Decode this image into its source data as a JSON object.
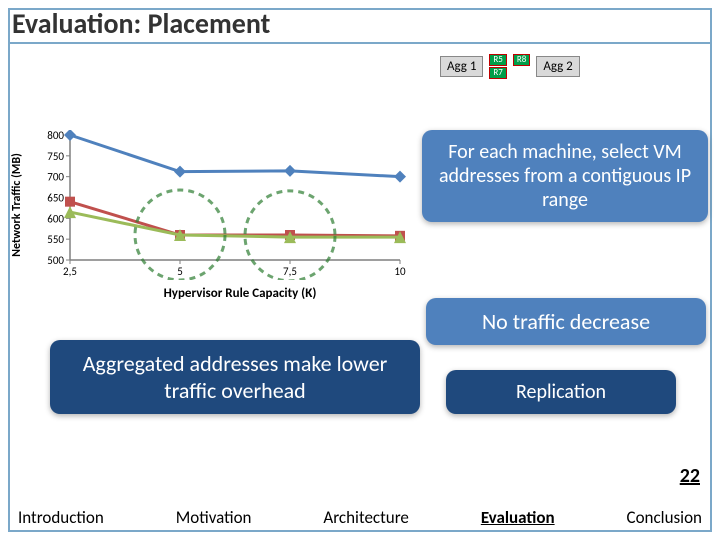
{
  "title": "Evaluation: Placement",
  "page_number": "22",
  "agg_labels": {
    "agg1": "Agg 1",
    "agg2": "Agg 2"
  },
  "router_chips": [
    "R5",
    "R7",
    "R8"
  ],
  "chart": {
    "type": "line",
    "y_label": "Network Traffic (MB)",
    "x_label": "Hypervisor Rule Capacity (K)",
    "y_axis": {
      "min": 500,
      "max": 800,
      "step": 50,
      "ticks": [
        500,
        550,
        600,
        650,
        700,
        750,
        800
      ]
    },
    "x_categories": [
      "2,5",
      "5",
      "7,5",
      "10"
    ],
    "series": [
      {
        "name": "series-blue",
        "color": "#4f81bd",
        "marker": "diamond",
        "marker_size": 12,
        "line_width": 3,
        "values": [
          800,
          712,
          714,
          700
        ]
      },
      {
        "name": "series-red",
        "color": "#c0504d",
        "marker": "square",
        "marker_size": 10,
        "line_width": 3,
        "values": [
          640,
          560,
          560,
          558
        ]
      },
      {
        "name": "series-green",
        "color": "#9bbb59",
        "marker": "triangle",
        "marker_size": 12,
        "line_width": 3,
        "values": [
          615,
          560,
          555,
          555
        ]
      }
    ],
    "plot_bg": "#ffffff",
    "axis_color": "#7f7f7f",
    "dashed_circle_color": "#2e7d32",
    "dashed_circles": [
      {
        "cx_cat_idx": 1,
        "y_center": 560,
        "r": 45
      },
      {
        "cx_cat_idx": 2,
        "y_center": 558,
        "r": 45
      }
    ]
  },
  "callouts": {
    "c1": "For each machine, select VM addresses from a contiguous IP range",
    "c2": "No traffic decrease",
    "c3": "Aggregated addresses make lower traffic overhead",
    "c4": "Replication"
  },
  "footer": {
    "items": [
      "Introduction",
      "Motivation",
      "Architecture",
      "Evaluation",
      "Conclusion"
    ],
    "active_index": 3
  },
  "colors": {
    "accent": "#4f81bd",
    "dark_accent": "#1f497d",
    "border": "#7ba8c9"
  }
}
